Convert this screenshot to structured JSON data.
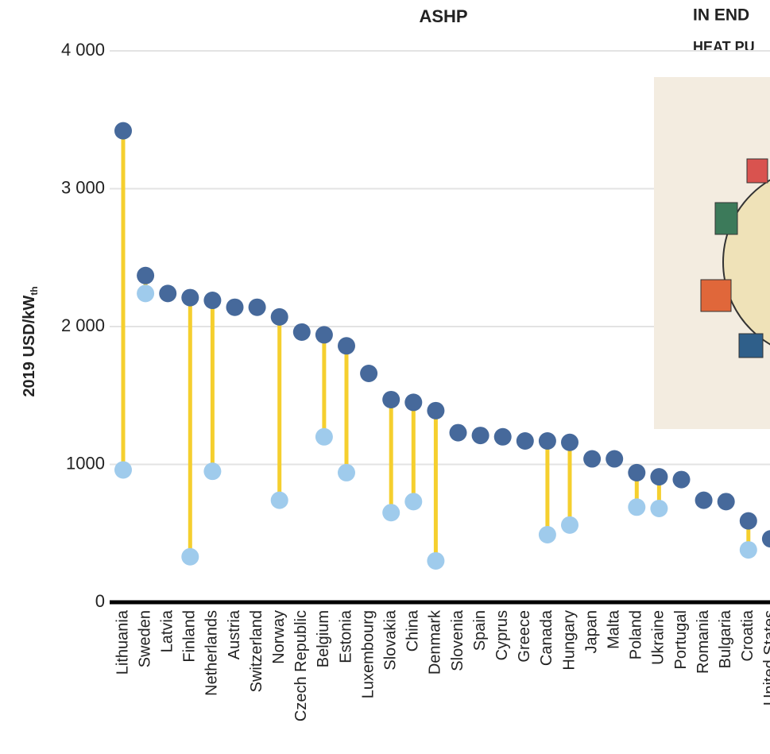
{
  "chart_data": {
    "type": "dumbbell",
    "title": "ASHP",
    "y_label": "2019 USD/kW",
    "y_label_sub": "th",
    "categories": [
      "Lithuania",
      "Sweden",
      "Latvia",
      "Finland",
      "Netherlands",
      "Austria",
      "Switzerland",
      "Norway",
      "Czech Republic",
      "Belgium",
      "Estonia",
      "Luxembourg",
      "Slovakia",
      "China",
      "Denmark",
      "Slovenia",
      "Spain",
      "Cyprus",
      "Greece",
      "Canada",
      "Hungary",
      "Japan",
      "Malta",
      "Poland",
      "Ukraine",
      "Portugal",
      "Romania",
      "Bulgaria",
      "Croatia",
      "United States"
    ],
    "series": [
      {
        "color": "#46699b",
        "values": [
          3420,
          2370,
          2240,
          2210,
          2190,
          2140,
          2140,
          2070,
          1960,
          1940,
          1860,
          1660,
          1470,
          1450,
          1390,
          1230,
          1210,
          1200,
          1170,
          1170,
          1160,
          1040,
          1040,
          940,
          910,
          890,
          740,
          730,
          590,
          460
        ]
      },
      {
        "color": "#9fcbec",
        "values": [
          960,
          2240,
          null,
          330,
          950,
          null,
          null,
          740,
          null,
          1200,
          940,
          null,
          650,
          730,
          300,
          null,
          null,
          null,
          null,
          490,
          560,
          null,
          null,
          690,
          680,
          null,
          null,
          null,
          380,
          null
        ]
      }
    ],
    "stem_color": "#f5cf2e",
    "ylim": [
      0,
      4000
    ],
    "yticks": [
      {
        "value": 0,
        "label": "0"
      },
      {
        "value": 1000,
        "label": "1000"
      },
      {
        "value": 2000,
        "label": "2 000"
      },
      {
        "value": 3000,
        "label": "3 000"
      },
      {
        "value": 4000,
        "label": "4 000"
      }
    ],
    "grid": true
  },
  "side_panel": {
    "title": "IN END",
    "subtitle": "HEAT PU"
  }
}
